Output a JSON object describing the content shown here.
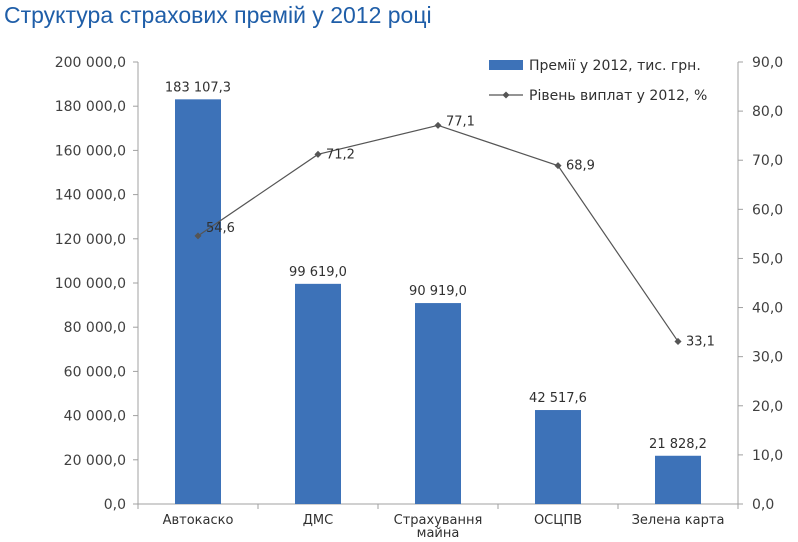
{
  "chart_data": {
    "type": "bar",
    "title": "Структура страхових премій у 2012 році",
    "categories": [
      "Автокаско",
      "ДМС",
      "Страхування\nмайна",
      "ОСЦПВ",
      "Зелена карта"
    ],
    "series": [
      {
        "name": "Премії у 2012, тис. грн.",
        "type": "bar",
        "axis": "left",
        "values": [
          183107.3,
          99619.0,
          90919.0,
          42517.6,
          21828.2
        ],
        "labels": [
          "183 107,3",
          "99 619,0",
          "90 919,0",
          "42 517,6",
          "21 828,2"
        ],
        "color": "#3d72b8"
      },
      {
        "name": "Рівень виплат у 2012, %",
        "type": "line",
        "axis": "right",
        "values": [
          54.6,
          71.2,
          77.1,
          68.9,
          33.1
        ],
        "labels": [
          "54,6",
          "71,2",
          "77,1",
          "68,9",
          "33,1"
        ],
        "color": "#555555"
      }
    ],
    "y_left": {
      "lim": [
        0,
        200000
      ],
      "ticks": [
        "0,0",
        "20 000,0",
        "40 000,0",
        "60 000,0",
        "80 000,0",
        "100 000,0",
        "120 000,0",
        "140 000,0",
        "160 000,0",
        "180 000,0",
        "200 000,0"
      ]
    },
    "y_right": {
      "lim": [
        0,
        90
      ],
      "ticks": [
        "0,0",
        "10,0",
        "20,0",
        "30,0",
        "40,0",
        "50,0",
        "60,0",
        "70,0",
        "80,0",
        "90,0"
      ]
    },
    "legend": "top-right",
    "grid": false
  }
}
